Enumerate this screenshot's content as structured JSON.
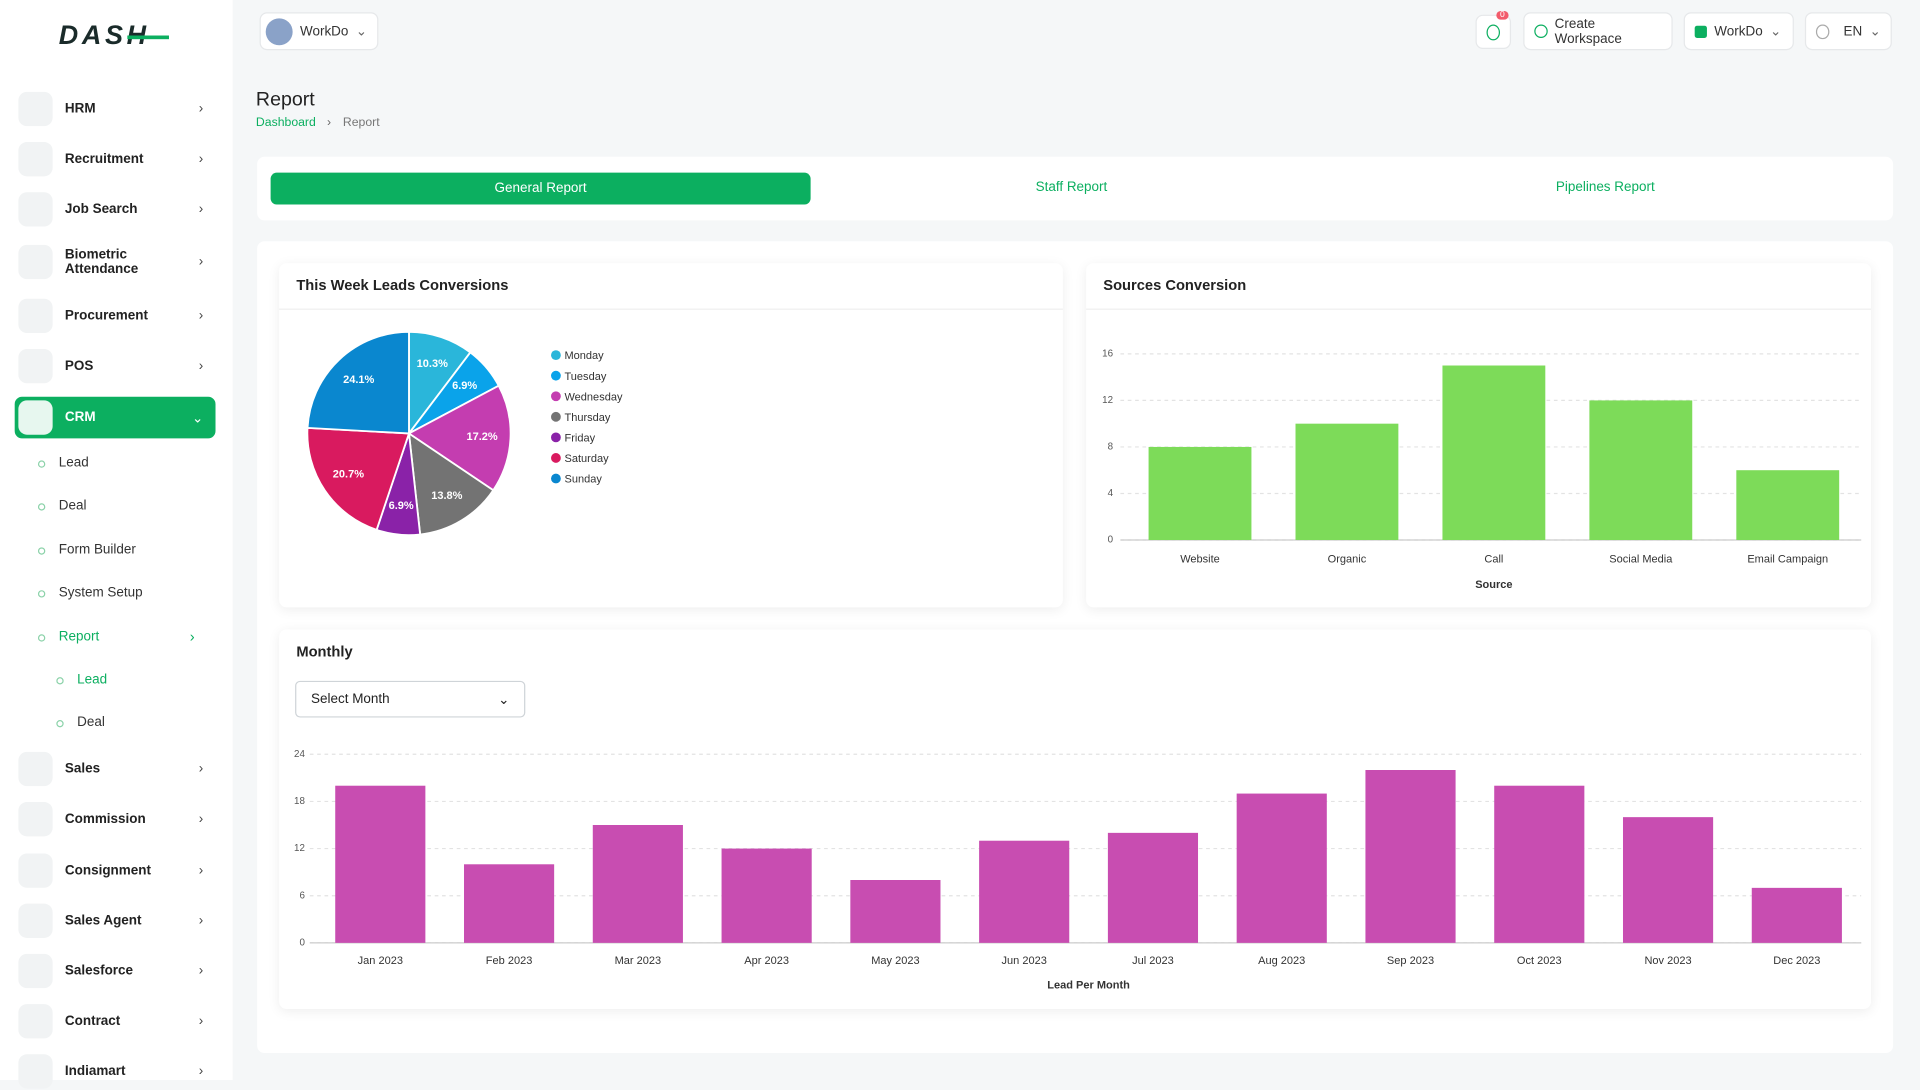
{
  "brand": "DASH",
  "header": {
    "workspace": "WorkDo",
    "notifications": 0,
    "create_workspace": "Create Workspace",
    "user": "WorkDo",
    "language": "EN"
  },
  "sidebar": {
    "items": [
      "HRM",
      "Recruitment",
      "Job Search",
      "Biometric Attendance",
      "Procurement",
      "POS"
    ],
    "active": "CRM",
    "crm_items": [
      "Lead",
      "Deal",
      "Form Builder",
      "System Setup",
      "Report"
    ],
    "report_items": [
      "Lead",
      "Deal"
    ],
    "items_after": [
      "Sales",
      "Commission",
      "Consignment",
      "Sales Agent",
      "Salesforce",
      "Contract",
      "Indiamart"
    ]
  },
  "page": {
    "title": "Report",
    "breadcrumb": [
      "Dashboard",
      "Report"
    ]
  },
  "tabs": [
    "General Report",
    "Staff Report",
    "Pipelines Report"
  ],
  "month_select": "Select Month",
  "chart_data": [
    {
      "type": "pie",
      "title": "This Week Leads Conversions",
      "categories": [
        "Monday",
        "Tuesday",
        "Wednesday",
        "Thursday",
        "Friday",
        "Saturday",
        "Sunday"
      ],
      "values": [
        10.3,
        6.9,
        17.2,
        13.8,
        6.9,
        20.7,
        24.1
      ],
      "value_labels": [
        "10.3%",
        "6.9%",
        "17.2%",
        "13.8%",
        "6.9%",
        "20.7%",
        "24.1%"
      ],
      "colors": [
        "#2ab6da",
        "#0aa3ea",
        "#c43db0",
        "#737373",
        "#8a22a8",
        "#d91a5f",
        "#0a87cf"
      ]
    },
    {
      "type": "bar",
      "title": "Sources Conversion",
      "x_label": "Source",
      "categories": [
        "Website",
        "Organic",
        "Call",
        "Social Media",
        "Email Campaign"
      ],
      "values": [
        8,
        10,
        15,
        12,
        6
      ],
      "color": "#7ddb59",
      "ylim": [
        0,
        16
      ],
      "yticks": [
        0,
        4,
        8,
        12,
        16
      ],
      "grid": true
    },
    {
      "type": "bar",
      "title": "Monthly",
      "x_label": "Lead Per Month",
      "categories": [
        "Jan 2023",
        "Feb 2023",
        "Mar 2023",
        "Apr 2023",
        "May 2023",
        "Jun 2023",
        "Jul 2023",
        "Aug 2023",
        "Sep 2023",
        "Oct 2023",
        "Nov 2023",
        "Dec 2023"
      ],
      "values": [
        20,
        10,
        15,
        12,
        8,
        13,
        14,
        19,
        22,
        20,
        16,
        7
      ],
      "color": "#c84db1",
      "ylim": [
        0,
        24
      ],
      "yticks": [
        0,
        6,
        12,
        18,
        24
      ],
      "grid": true
    }
  ]
}
